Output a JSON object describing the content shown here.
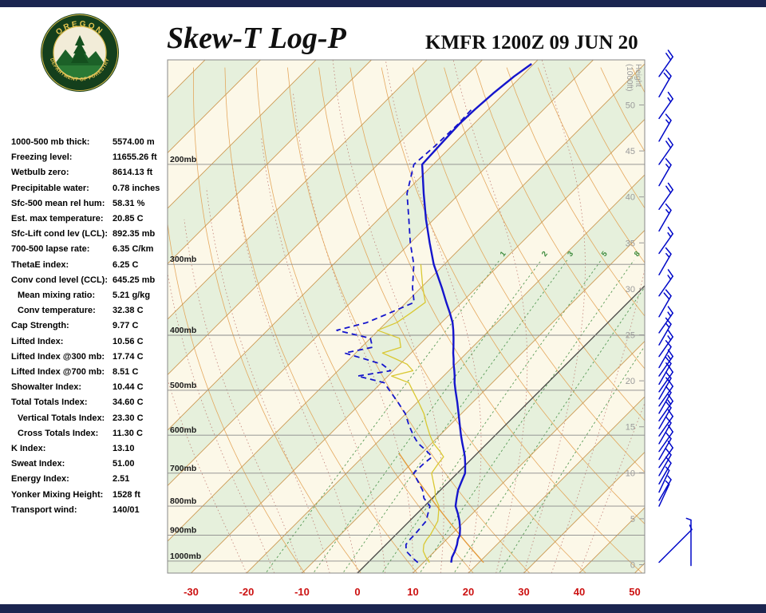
{
  "page": {
    "title_main": "Skew-T Log-P",
    "station_line": "KMFR 1200Z 09 JUN 20"
  },
  "logo": {
    "org_top": "OREGON",
    "org_bottom": "DEPARTMENT OF FORESTRY"
  },
  "stats": [
    {
      "label": "1000-500 mb thick:",
      "value": "5574.00 m",
      "indent": false
    },
    {
      "label": "Freezing level:",
      "value": "11655.26 ft",
      "indent": false
    },
    {
      "label": "Wetbulb zero:",
      "value": "8614.13 ft",
      "indent": false
    },
    {
      "label": "Precipitable water:",
      "value": "0.78 inches",
      "indent": false
    },
    {
      "label": "Sfc-500 mean rel hum:",
      "value": "58.31 %",
      "indent": false
    },
    {
      "label": "Est. max temperature:",
      "value": "20.85 C",
      "indent": false
    },
    {
      "label": "Sfc-Lift cond lev (LCL):",
      "value": "892.35 mb",
      "indent": false
    },
    {
      "label": "700-500 lapse rate:",
      "value": "6.35 C/km",
      "indent": false
    },
    {
      "label": "ThetaE index:",
      "value": "6.25 C",
      "indent": false
    },
    {
      "label": "Conv cond level (CCL):",
      "value": "645.25 mb",
      "indent": false
    },
    {
      "label": "Mean mixing ratio:",
      "value": "5.21 g/kg",
      "indent": true
    },
    {
      "label": "Conv temperature:",
      "value": "32.38 C",
      "indent": true
    },
    {
      "label": "Cap Strength:",
      "value": "9.77 C",
      "indent": false
    },
    {
      "label": "Lifted Index:",
      "value": "10.56 C",
      "indent": false
    },
    {
      "label": "Lifted Index @300 mb:",
      "value": "17.74 C",
      "indent": false
    },
    {
      "label": "Lifted Index @700 mb:",
      "value": "8.51 C",
      "indent": false
    },
    {
      "label": "Showalter Index:",
      "value": "10.44 C",
      "indent": false
    },
    {
      "label": "Total Totals Index:",
      "value": "34.60 C",
      "indent": false
    },
    {
      "label": "Vertical Totals Index:",
      "value": "23.30 C",
      "indent": true
    },
    {
      "label": "Cross Totals Index:",
      "value": "11.30 C",
      "indent": true
    },
    {
      "label": "K Index:",
      "value": "13.10",
      "indent": false
    },
    {
      "label": "Sweat Index:",
      "value": "51.00",
      "indent": false
    },
    {
      "label": "Energy Index:",
      "value": "2.51",
      "indent": false
    },
    {
      "label": "Yonker Mixing Height:",
      "value": "1528 ft",
      "indent": false
    },
    {
      "label": "Transport wind:",
      "value": "140/01",
      "indent": false
    }
  ],
  "chart_data": {
    "type": "skewt-log-p",
    "title": "Skew-T Log-P",
    "station": "KMFR",
    "valid_time": "1200Z 09 JUN 20",
    "pressure_axis": {
      "unit": "mb",
      "labels": [
        "200mb",
        "300mb",
        "400mb",
        "500mb",
        "600mb",
        "700mb",
        "800mb",
        "900mb",
        "1000mb"
      ],
      "values": [
        200,
        300,
        400,
        500,
        600,
        700,
        800,
        900,
        1000
      ],
      "range": [
        130,
        1050
      ]
    },
    "temp_axis": {
      "unit": "C",
      "tick_values": [
        -30,
        -20,
        -10,
        0,
        10,
        20,
        30,
        40,
        50
      ],
      "color": "#cc1111"
    },
    "height_axis": {
      "label_line1": "Height",
      "label_line2": "(1000ft)",
      "tick_values": [
        0,
        5,
        10,
        15,
        20,
        25,
        30,
        35,
        40,
        45,
        50
      ]
    },
    "mixing_ratio_lines": [
      1,
      2,
      3,
      5,
      8,
      12,
      20
    ],
    "mixing_ratio_labels": [
      "1",
      "2",
      "3",
      "5",
      "8"
    ],
    "sounding_levels": [
      {
        "p": 1006,
        "t": 15.0,
        "td": 9.0
      },
      {
        "p": 985,
        "t": 14.2,
        "td": 7.0
      },
      {
        "p": 960,
        "t": 13.6,
        "td": 4.8
      },
      {
        "p": 935,
        "t": 12.8,
        "td": 3.6
      },
      {
        "p": 915,
        "t": 12.0,
        "td": 3.4
      },
      {
        "p": 900,
        "t": 11.6,
        "td": 3.4
      },
      {
        "p": 875,
        "t": 10.4,
        "td": 3.2
      },
      {
        "p": 850,
        "t": 9.0,
        "td": 3.0
      },
      {
        "p": 825,
        "t": 7.4,
        "td": 2.0
      },
      {
        "p": 800,
        "t": 5.6,
        "td": 1.0
      },
      {
        "p": 775,
        "t": 4.4,
        "td": -1.5
      },
      {
        "p": 750,
        "t": 3.2,
        "td": -3.2
      },
      {
        "p": 725,
        "t": 2.3,
        "td": -5.5
      },
      {
        "p": 700,
        "t": 1.4,
        "td": -7.9
      },
      {
        "p": 675,
        "t": -0.2,
        "td": -7.8
      },
      {
        "p": 655,
        "t": -1.6,
        "td": -7.5
      },
      {
        "p": 640,
        "t": -2.8,
        "td": -9.5
      },
      {
        "p": 620,
        "t": -4.5,
        "td": -12.5
      },
      {
        "p": 600,
        "t": -6.2,
        "td": -14.8
      },
      {
        "p": 575,
        "t": -8.3,
        "td": -17.5
      },
      {
        "p": 550,
        "t": -10.5,
        "td": -20.1
      },
      {
        "p": 525,
        "t": -12.8,
        "td": -23.5
      },
      {
        "p": 500,
        "t": -15.3,
        "td": -27.2
      },
      {
        "p": 485,
        "t": -16.8,
        "td": -29.5
      },
      {
        "p": 472,
        "t": -18.0,
        "td": -35.5
      },
      {
        "p": 462,
        "t": -19.0,
        "td": -30.5
      },
      {
        "p": 450,
        "t": -20.3,
        "td": -33.2
      },
      {
        "p": 440,
        "t": -21.3,
        "td": -37.5
      },
      {
        "p": 430,
        "t": -22.4,
        "td": -42.0
      },
      {
        "p": 420,
        "t": -23.4,
        "td": -38.0
      },
      {
        "p": 405,
        "t": -25.0,
        "td": -40.0
      },
      {
        "p": 392,
        "t": -26.5,
        "td": -47.5
      },
      {
        "p": 380,
        "t": -28.0,
        "td": -43.5
      },
      {
        "p": 365,
        "t": -30.3,
        "td": -41.0
      },
      {
        "p": 350,
        "t": -32.8,
        "td": -38.6
      },
      {
        "p": 330,
        "t": -36.2,
        "td": -41.5
      },
      {
        "p": 300,
        "t": -41.9,
        "td": -45.5
      },
      {
        "p": 275,
        "t": -46.5,
        "td": -50.0
      },
      {
        "p": 250,
        "t": -51.4,
        "td": -54.5
      },
      {
        "p": 225,
        "t": -56.5,
        "td": -59.5
      },
      {
        "p": 200,
        "t": -62.0,
        "td": -63.5
      },
      {
        "p": 185,
        "t": -62.3,
        "td": -63.0
      },
      {
        "p": 170,
        "t": -62.6,
        "td": -62.8
      },
      {
        "p": 160,
        "t": -62.4,
        "td": -63.0
      },
      {
        "p": 150,
        "t": -62.0,
        "td": null
      },
      {
        "p": 140,
        "t": -61.3,
        "td": null
      },
      {
        "p": 133,
        "t": -60.4,
        "td": null
      }
    ],
    "parcel": {
      "surface_p": 1006,
      "start_temp_c": 20.85,
      "top_p": 645
    },
    "winds": [
      {
        "p": 140,
        "dir": 35,
        "spd": 20
      },
      {
        "p": 152,
        "dir": 30,
        "spd": 20
      },
      {
        "p": 166,
        "dir": 35,
        "spd": 15
      },
      {
        "p": 182,
        "dir": 30,
        "spd": 15
      },
      {
        "p": 200,
        "dir": 35,
        "spd": 20
      },
      {
        "p": 218,
        "dir": 30,
        "spd": 15
      },
      {
        "p": 240,
        "dir": 35,
        "spd": 20
      },
      {
        "p": 262,
        "dir": 30,
        "spd": 15
      },
      {
        "p": 287,
        "dir": 35,
        "spd": 15
      },
      {
        "p": 313,
        "dir": 30,
        "spd": 15
      },
      {
        "p": 341,
        "dir": 35,
        "spd": 15
      },
      {
        "p": 371,
        "dir": 30,
        "spd": 20
      },
      {
        "p": 396,
        "dir": 35,
        "spd": 15
      },
      {
        "p": 416,
        "dir": 30,
        "spd": 15
      },
      {
        "p": 436,
        "dir": 35,
        "spd": 15
      },
      {
        "p": 456,
        "dir": 30,
        "spd": 10
      },
      {
        "p": 472,
        "dir": 35,
        "spd": 15
      },
      {
        "p": 488,
        "dir": 30,
        "spd": 15
      },
      {
        "p": 503,
        "dir": 35,
        "spd": 10
      },
      {
        "p": 518,
        "dir": 30,
        "spd": 15
      },
      {
        "p": 533,
        "dir": 35,
        "spd": 10
      },
      {
        "p": 549,
        "dir": 30,
        "spd": 10
      },
      {
        "p": 566,
        "dir": 35,
        "spd": 15
      },
      {
        "p": 584,
        "dir": 30,
        "spd": 10
      },
      {
        "p": 602,
        "dir": 35,
        "spd": 10
      },
      {
        "p": 621,
        "dir": 30,
        "spd": 10
      },
      {
        "p": 641,
        "dir": 35,
        "spd": 10
      },
      {
        "p": 662,
        "dir": 30,
        "spd": 10
      },
      {
        "p": 684,
        "dir": 35,
        "spd": 10
      },
      {
        "p": 707,
        "dir": 30,
        "spd": 10
      },
      {
        "p": 731,
        "dir": 30,
        "spd": 10
      },
      {
        "p": 756,
        "dir": 25,
        "spd": 5
      },
      {
        "p": 782,
        "dir": 30,
        "spd": 5
      },
      {
        "p": 800,
        "dir": 25,
        "spd": 5
      },
      {
        "p": 1005,
        "dir": 45,
        "spd": 5,
        "len": 58
      },
      {
        "p": 1018,
        "dir": 360,
        "spd": 3,
        "len": 57,
        "xo": 40
      }
    ],
    "colors": {
      "band_green": "#e6f0dc",
      "band_cream": "#fcf8e8",
      "isotherm": "#c89044",
      "zero_isotherm": "#444444",
      "dry_adiabat": "#e2a050",
      "moist_adiabat": "#b25b54",
      "mixing_ratio": "#3d8b3d",
      "temp_line": "#1515cc",
      "dewpoint_line": "#1515cc",
      "wetbulb_line": "#d9c832",
      "parcel_line": "#e39a3b",
      "axis_red": "#cc1111",
      "height_gray": "#9a9a9a",
      "pressure_line": "#8a8a8a",
      "wind_barb": "#0008c8",
      "navy_bar": "#1b2550"
    }
  }
}
